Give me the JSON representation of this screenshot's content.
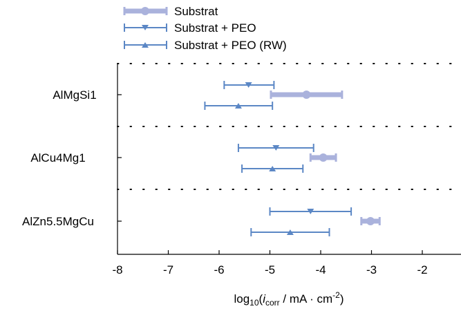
{
  "chart_data": {
    "type": "scatter",
    "subtype": "horizontal-interval-plot",
    "categories": [
      "AlMgSi1",
      "AlCu4Mg1",
      "AlZn5.5MgCu"
    ],
    "xlabel_parts": {
      "log": "log",
      "base": "10",
      "open": "(",
      "i": "i",
      "corr": "corr",
      "unit": " / mA · cm",
      "exp": "-2",
      "close": ")"
    },
    "xlim": [
      -8,
      -1.5
    ],
    "xticks": [
      -8,
      -7,
      -6,
      -5,
      -4,
      -3,
      -2
    ],
    "xtick_labels": [
      "-8",
      "-7",
      "-6",
      "-5",
      "-4",
      "-3",
      "-2"
    ],
    "grid": false,
    "legend_position": "top-left, above plot",
    "series": [
      {
        "name": "Substrat",
        "marker": "circle",
        "color": "#aab2dc",
        "points": [
          {
            "category": "AlMgSi1",
            "x": -4.28,
            "low": -4.98,
            "high": -3.58
          },
          {
            "category": "AlCu4Mg1",
            "x": -3.95,
            "low": -4.2,
            "high": -3.7
          },
          {
            "category": "AlZn5.5MgCu",
            "x": -3.02,
            "low": -3.2,
            "high": -2.84
          }
        ]
      },
      {
        "name": "Substrat + PEO",
        "marker": "triangle-down",
        "color": "#5b87c5",
        "points": [
          {
            "category": "AlMgSi1",
            "x": -5.42,
            "low": -5.9,
            "high": -4.92
          },
          {
            "category": "AlCu4Mg1",
            "x": -4.88,
            "low": -5.62,
            "high": -4.14
          },
          {
            "category": "AlZn5.5MgCu",
            "x": -4.2,
            "low": -5.0,
            "high": -3.4
          }
        ]
      },
      {
        "name": "Substrat + PEO (RW)",
        "marker": "triangle-up",
        "color": "#5b87c5",
        "points": [
          {
            "category": "AlMgSi1",
            "x": -5.62,
            "low": -6.28,
            "high": -4.95
          },
          {
            "category": "AlCu4Mg1",
            "x": -4.95,
            "low": -5.55,
            "high": -4.35
          },
          {
            "category": "AlZn5.5MgCu",
            "x": -4.6,
            "low": -5.37,
            "high": -3.83
          }
        ]
      }
    ]
  }
}
